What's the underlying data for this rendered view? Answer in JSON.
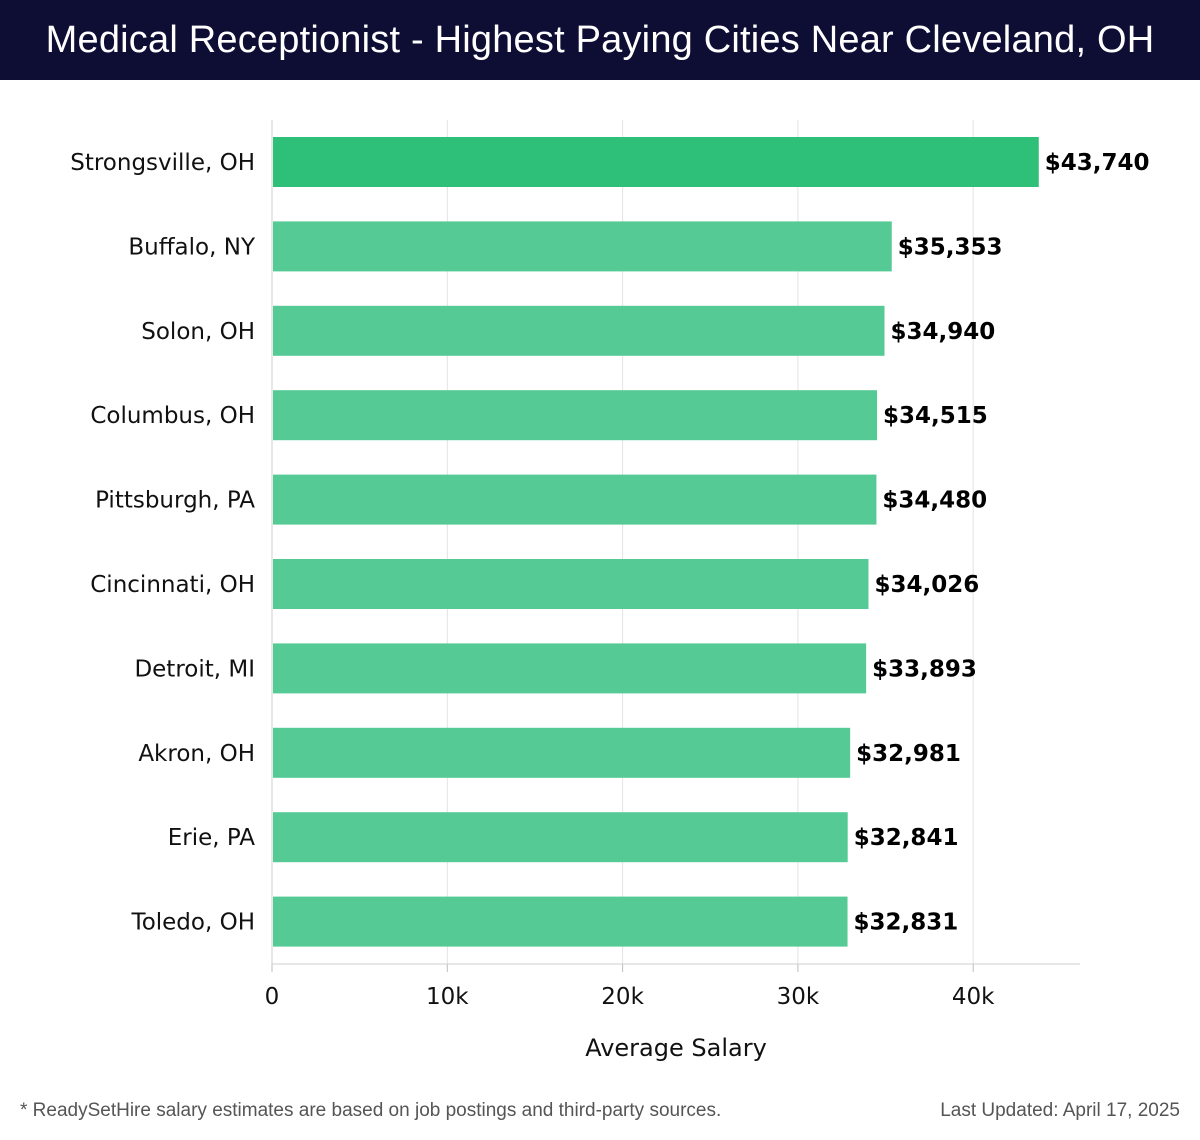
{
  "header": {
    "title": "Medical Receptionist - Highest Paying Cities Near Cleveland, OH"
  },
  "colors": {
    "header_bg": "#0e0e35",
    "bar_primary": "#2ebf79",
    "bar_secondary": "#55ca95",
    "text": "#000000"
  },
  "chart_data": {
    "type": "bar",
    "orientation": "horizontal",
    "title": "Medical Receptionist - Highest Paying Cities Near Cleveland, OH",
    "categories": [
      "Strongsville, OH",
      "Buffalo, NY",
      "Solon, OH",
      "Columbus, OH",
      "Pittsburgh, PA",
      "Cincinnati, OH",
      "Detroit, MI",
      "Akron, OH",
      "Erie, PA",
      "Toledo, OH"
    ],
    "values": [
      43740,
      35353,
      34940,
      34515,
      34480,
      34026,
      33893,
      32981,
      32841,
      32831
    ],
    "value_labels": [
      "$43,740",
      "$35,353",
      "$34,940",
      "$34,515",
      "$34,480",
      "$34,026",
      "$33,893",
      "$32,981",
      "$32,841",
      "$32,831"
    ],
    "xlabel": "Average Salary",
    "ylabel": "",
    "xlim": [
      0,
      46000
    ],
    "xticks": [
      0,
      10000,
      20000,
      30000,
      40000
    ],
    "xtick_labels": [
      "0",
      "10k",
      "20k",
      "30k",
      "40k"
    ],
    "grid": true
  },
  "footer": {
    "note": "* ReadySetHire salary estimates are based on job postings and third-party sources.",
    "updated": "Last Updated: April 17, 2025"
  }
}
